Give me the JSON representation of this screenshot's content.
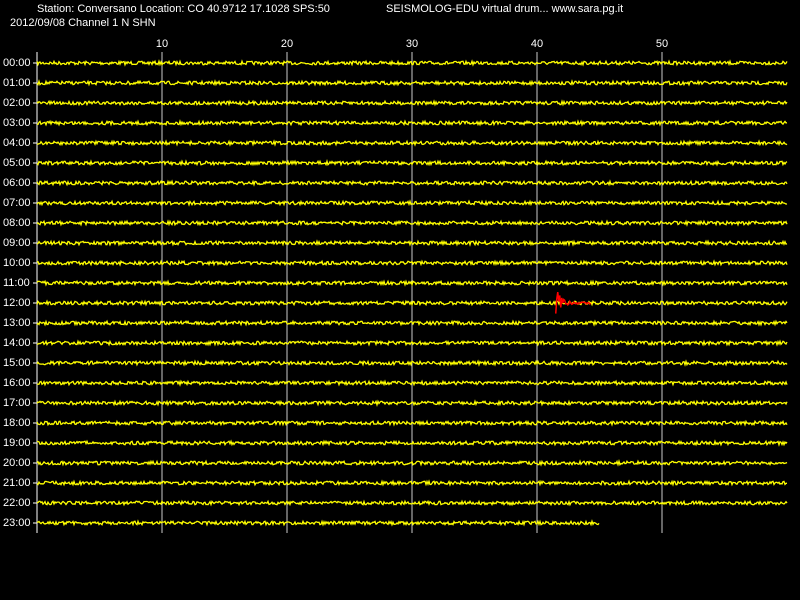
{
  "header": {
    "station": "Station: Conversano Location: CO 40.9712 17.1028 SPS:50",
    "date_channel": "2012/09/08  Channel 1 N SHN",
    "program": "SEISMOLOG-EDU virtual drum... www.sara.pg.it"
  },
  "chart_data": {
    "type": "drum",
    "xlim": [
      0,
      60
    ],
    "xticks": [
      10,
      20,
      30,
      40,
      50
    ],
    "grid": true,
    "categories": [
      "00:00",
      "01:00",
      "02:00",
      "03:00",
      "04:00",
      "05:00",
      "06:00",
      "07:00",
      "08:00",
      "09:00",
      "10:00",
      "11:00",
      "12:00",
      "13:00",
      "14:00",
      "15:00",
      "16:00",
      "17:00",
      "18:00",
      "19:00",
      "20:00",
      "21:00",
      "22:00",
      "23:00"
    ],
    "color": "#ffff00",
    "trace_ends": [
      60,
      60,
      60,
      60,
      60,
      60,
      60,
      60,
      60,
      60,
      60,
      60,
      60,
      60,
      60,
      60,
      60,
      60,
      60,
      60,
      60,
      60,
      60,
      45
    ],
    "event": {
      "row": "12:00",
      "color": "#ff0000",
      "start": 41.5,
      "end": 44.3
    }
  }
}
